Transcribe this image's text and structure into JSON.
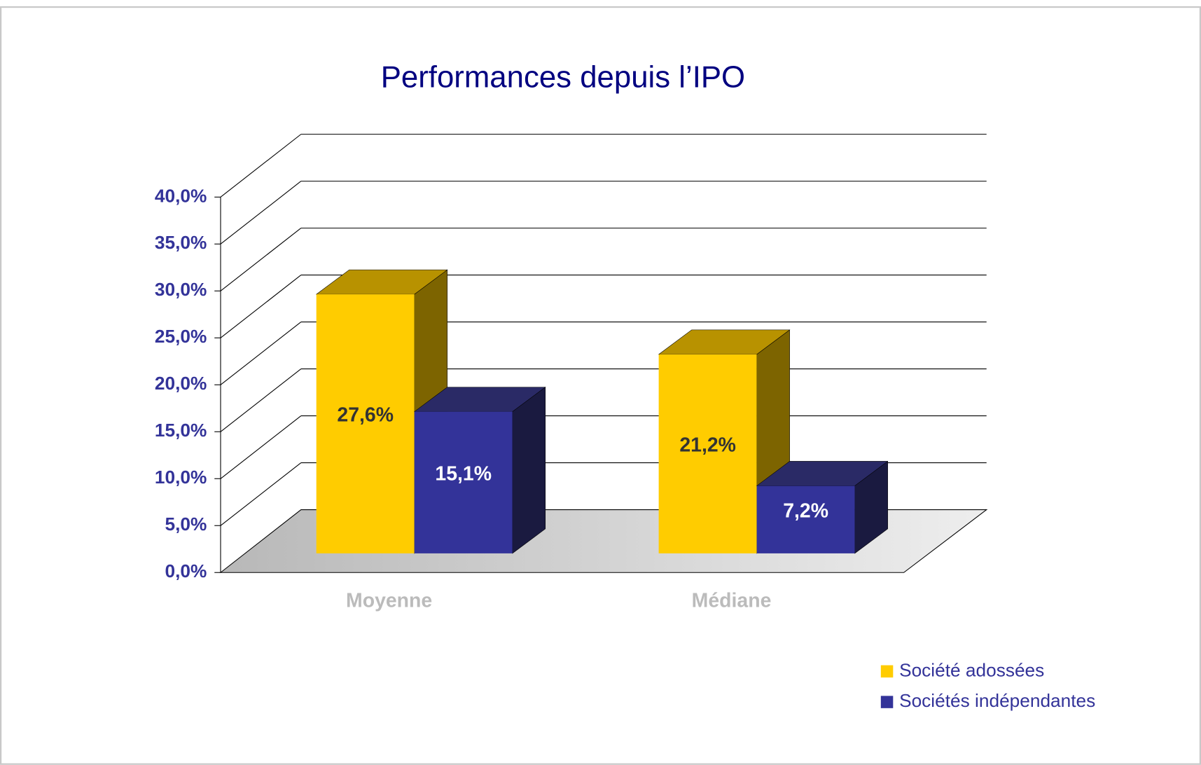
{
  "chart_data": {
    "type": "bar3d",
    "title": "Performances depuis l’IPO",
    "categories": [
      "Moyenne",
      "Médiane"
    ],
    "series": [
      {
        "name": "Société adossées",
        "color": "#ffcc00",
        "values": [
          27.6,
          21.2
        ],
        "value_labels": [
          "27,6%",
          "21,2%"
        ]
      },
      {
        "name": "Sociétés indépendantes",
        "color": "#333399",
        "values": [
          15.1,
          7.2
        ],
        "value_labels": [
          "15,1%",
          "7,2%"
        ]
      }
    ],
    "ylim": [
      0,
      40
    ],
    "yticks": [
      {
        "value": 0,
        "label": "0,0%"
      },
      {
        "value": 5,
        "label": "5,0%"
      },
      {
        "value": 10,
        "label": "10,0%"
      },
      {
        "value": 15,
        "label": "15,0%"
      },
      {
        "value": 20,
        "label": "20,0%"
      },
      {
        "value": 25,
        "label": "25,0%"
      },
      {
        "value": 30,
        "label": "30,0%"
      },
      {
        "value": 35,
        "label": "35,0%"
      },
      {
        "value": 40,
        "label": "40,0%"
      }
    ],
    "grid": true,
    "legend": "bottom-right"
  }
}
